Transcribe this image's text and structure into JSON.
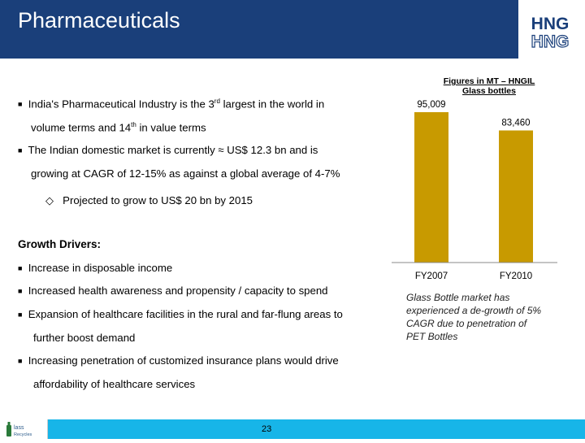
{
  "header": {
    "title": "Pharmaceuticals"
  },
  "logo": {
    "line1": "HNG",
    "line2": "HNG"
  },
  "bullets": {
    "b1_part1": "India's Pharmaceutical Industry is the 3",
    "b1_sup1": "rd",
    "b1_part2": " largest in the world in",
    "b1_cont1": "volume terms and 14",
    "b1_sup2": "th",
    "b1_cont2": " in value terms",
    "b2_line1": "The Indian domestic market is currently ≈ US$ 12.3 bn and is",
    "b2_line2": "growing at CAGR of 12-15% as against a global average of 4-7%",
    "sub_bullet": "Projected to grow to US$ 20 bn by 2015",
    "growth_heading": "Growth Drivers:",
    "g1": "Increase in disposable income",
    "g2": "Increased health awareness and propensity / capacity to spend",
    "g3_line1": "Expansion of healthcare facilities in the rural and far-flung areas to",
    "g3_line2": "further boost demand",
    "g4_line1": "Increasing penetration of customized insurance plans would drive",
    "g4_line2": "affordability of healthcare services"
  },
  "chart_title": {
    "line1": "Figures in MT – HNGIL",
    "line2": "Glass bottles"
  },
  "chart_data": {
    "type": "bar",
    "categories": [
      "FY2007",
      "FY2010"
    ],
    "values": [
      95009,
      83460
    ],
    "value_labels": [
      "95,009",
      "83,460"
    ],
    "bar_color": "#c89a00",
    "ylim": [
      0,
      100000
    ]
  },
  "caption": {
    "line1": "Glass Bottle market has",
    "line2": "experienced a  de-growth of 5%",
    "line3": "CAGR due to penetration of",
    "line4": "PET Bottles"
  },
  "footer": {
    "page_number": "23",
    "logo_text1": "lass",
    "logo_text2": "Recycles",
    "color": "#17b5e8"
  }
}
